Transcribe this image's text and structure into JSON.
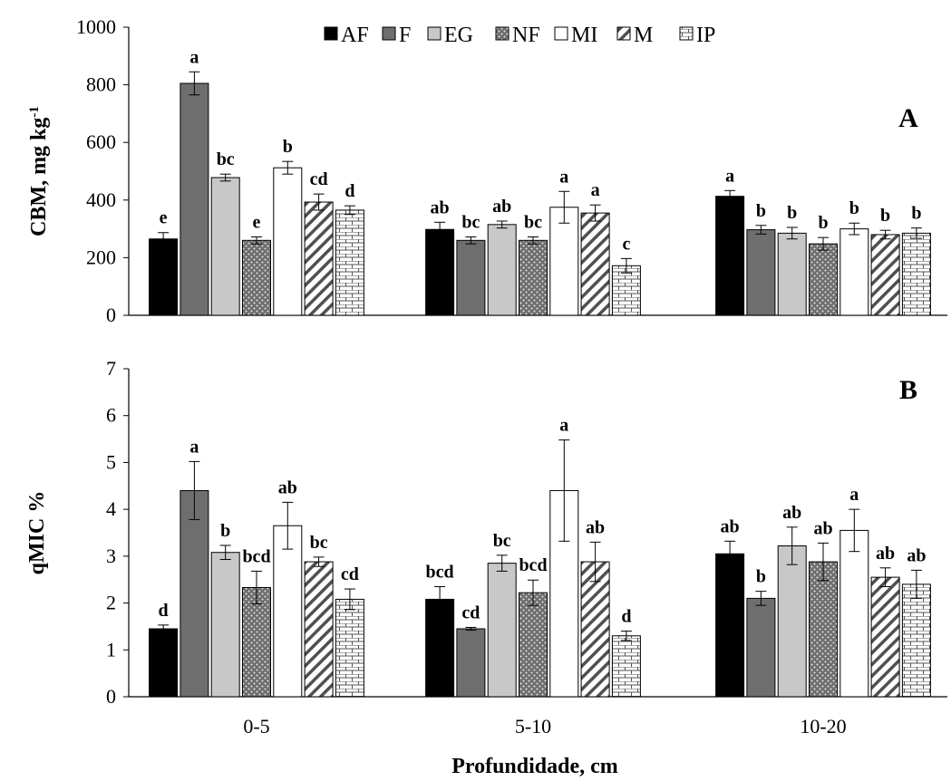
{
  "chart_data": [
    {
      "panel": "A",
      "type": "bar",
      "ylabel": "CBM, mg kg",
      "ylabel_sup": "-1",
      "ylim": [
        0,
        1000
      ],
      "yticks": [
        0,
        200,
        400,
        600,
        800,
        1000
      ],
      "categories": [
        "0-5",
        "5-10",
        "10-20"
      ],
      "series": [
        {
          "name": "AF",
          "values": [
            265,
            298,
            413
          ],
          "errors": [
            22,
            25,
            20
          ],
          "letters": [
            "e",
            "ab",
            "a"
          ]
        },
        {
          "name": "F",
          "values": [
            805,
            260,
            297
          ],
          "errors": [
            40,
            12,
            15
          ],
          "letters": [
            "a",
            "bc",
            "b"
          ]
        },
        {
          "name": "EG",
          "values": [
            478,
            315,
            285
          ],
          "errors": [
            12,
            12,
            20
          ],
          "letters": [
            "bc",
            "ab",
            "b"
          ]
        },
        {
          "name": "NF",
          "values": [
            260,
            260,
            248
          ],
          "errors": [
            12,
            12,
            22
          ],
          "letters": [
            "e",
            "bc",
            "b"
          ]
        },
        {
          "name": "MI",
          "values": [
            512,
            375,
            300
          ],
          "errors": [
            22,
            55,
            20
          ],
          "letters": [
            "b",
            "a",
            "b"
          ]
        },
        {
          "name": "M",
          "values": [
            393,
            355,
            280
          ],
          "errors": [
            28,
            28,
            15
          ],
          "letters": [
            "cd",
            "a",
            "b"
          ]
        },
        {
          "name": "IP",
          "values": [
            365,
            172,
            285
          ],
          "errors": [
            15,
            25,
            18
          ],
          "letters": [
            "d",
            "c",
            "b"
          ]
        }
      ]
    },
    {
      "panel": "B",
      "type": "bar",
      "ylabel": "qMIC %",
      "xlabel": "Profundidade, cm",
      "ylim": [
        0,
        7
      ],
      "yticks": [
        0,
        1,
        2,
        3,
        4,
        5,
        6,
        7
      ],
      "categories": [
        "0-5",
        "5-10",
        "10-20"
      ],
      "series": [
        {
          "name": "AF",
          "values": [
            1.45,
            2.08,
            3.05
          ],
          "errors": [
            0.08,
            0.27,
            0.27
          ],
          "letters": [
            "d",
            "bcd",
            "ab"
          ]
        },
        {
          "name": "F",
          "values": [
            4.4,
            1.45,
            2.1
          ],
          "errors": [
            0.62,
            0.03,
            0.15
          ],
          "letters": [
            "a",
            "cd",
            "b"
          ]
        },
        {
          "name": "EG",
          "values": [
            3.08,
            2.85,
            3.22
          ],
          "errors": [
            0.15,
            0.17,
            0.4
          ],
          "letters": [
            "b",
            "bc",
            "ab"
          ]
        },
        {
          "name": "NF",
          "values": [
            2.33,
            2.22,
            2.88
          ],
          "errors": [
            0.35,
            0.27,
            0.4
          ],
          "letters": [
            "bcd",
            "bcd",
            "ab"
          ]
        },
        {
          "name": "MI",
          "values": [
            3.65,
            4.4,
            3.55
          ],
          "errors": [
            0.5,
            1.08,
            0.45
          ],
          "letters": [
            "ab",
            "a",
            "a"
          ]
        },
        {
          "name": "M",
          "values": [
            2.88,
            2.88,
            2.55
          ],
          "errors": [
            0.1,
            0.42,
            0.2
          ],
          "letters": [
            "bc",
            "ab",
            "ab"
          ]
        },
        {
          "name": "IP",
          "values": [
            2.08,
            1.3,
            2.4
          ],
          "errors": [
            0.22,
            0.1,
            0.3
          ],
          "letters": [
            "cd",
            "d",
            "ab"
          ]
        }
      ]
    }
  ],
  "legend": {
    "entries": [
      "AF",
      "F",
      "EG",
      "NF",
      "MI",
      "M",
      "IP"
    ],
    "placement": "top"
  },
  "series_style": {
    "AF": {
      "fill": "#000000",
      "pattern": "solid"
    },
    "F": {
      "fill": "#6e6e6e",
      "pattern": "solid"
    },
    "EG": {
      "fill": "#c8c8c8",
      "pattern": "solid"
    },
    "NF": {
      "fill": "#6e6e6e",
      "pattern": "dots"
    },
    "MI": {
      "fill": "#ffffff",
      "pattern": "solid"
    },
    "M": {
      "fill": "#ffffff",
      "pattern": "diagonal"
    },
    "IP": {
      "fill": "#ffffff",
      "pattern": "brick"
    }
  }
}
